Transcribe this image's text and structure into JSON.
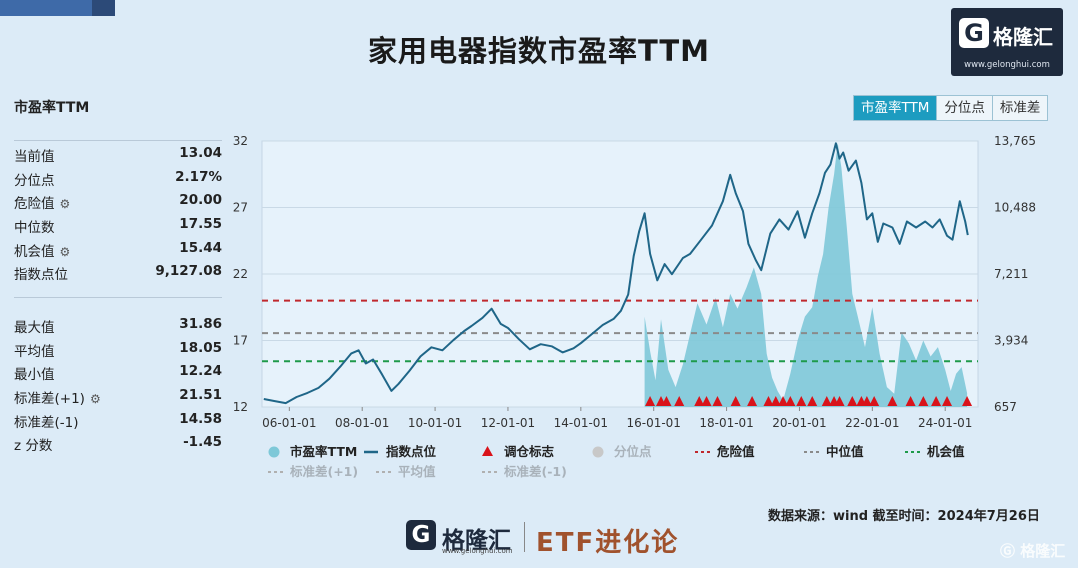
{
  "title": "家用电器指数市盈率TTM",
  "logo": {
    "mark": "G",
    "name": "格隆汇",
    "url": "www.gelonghui.com"
  },
  "panel": {
    "title": "市盈率TTM",
    "stats_top": [
      {
        "label": "当前值",
        "value": "13.04",
        "gear": false
      },
      {
        "label": "分位点",
        "value": "2.17%",
        "gear": false
      },
      {
        "label": "危险值",
        "value": "20.00",
        "gear": true
      },
      {
        "label": "中位数",
        "value": "17.55",
        "gear": false
      },
      {
        "label": "机会值",
        "value": "15.44",
        "gear": true
      },
      {
        "label": "指数点位",
        "value": "9,127.08",
        "gear": false
      }
    ],
    "stats_bottom": [
      {
        "label": "最大值",
        "value": "31.86",
        "gear": false
      },
      {
        "label": "平均值",
        "value": "18.05",
        "gear": false
      },
      {
        "label": "最小值",
        "value": "12.24",
        "gear": false
      },
      {
        "label": "标准差(+1)",
        "value": "21.51",
        "gear": true
      },
      {
        "label": "标准差(-1)",
        "value": "14.58",
        "gear": false
      },
      {
        "label": "z 分数",
        "value": "-1.45",
        "gear": false
      }
    ]
  },
  "tabs": [
    {
      "label": "市盈率TTM",
      "active": true
    },
    {
      "label": "分位点",
      "active": false
    },
    {
      "label": "标准差",
      "active": false
    }
  ],
  "source": "数据来源：wind 截至时间：2024年7月26日",
  "bottom_logo": {
    "mark": "G",
    "name": "格隆汇",
    "url": "www.gelonghui.com",
    "brand": "ETF进化论"
  },
  "watermark": "格隆汇",
  "chart_data": {
    "type": "line",
    "x_ticks": [
      "06-01-01",
      "08-01-01",
      "10-01-01",
      "12-01-01",
      "14-01-01",
      "16-01-01",
      "18-01-01",
      "20-01-01",
      "22-01-01",
      "24-01-01"
    ],
    "x_range": [
      2005.25,
      2024.9
    ],
    "y_left": {
      "ticks": [
        "12",
        "17",
        "22",
        "27",
        "32"
      ],
      "range": [
        12,
        32
      ]
    },
    "y_right": {
      "ticks": [
        "657",
        "3,934",
        "7,211",
        "10,488",
        "13,765"
      ],
      "range": [
        657,
        13765
      ]
    },
    "grid": true,
    "legend_position": "bottom",
    "series": [
      {
        "name": "市盈率TTM",
        "kind": "area",
        "axis": "left",
        "color": "#7ec8d8",
        "points": [
          [
            2015.75,
            18.8
          ],
          [
            2015.9,
            16.2
          ],
          [
            2016.05,
            14.0
          ],
          [
            2016.2,
            18.6
          ],
          [
            2016.4,
            14.8
          ],
          [
            2016.6,
            13.5
          ],
          [
            2016.8,
            15.2
          ],
          [
            2017.0,
            17.5
          ],
          [
            2017.2,
            19.8
          ],
          [
            2017.45,
            18.2
          ],
          [
            2017.7,
            20.2
          ],
          [
            2017.9,
            18.0
          ],
          [
            2018.1,
            20.5
          ],
          [
            2018.3,
            19.4
          ],
          [
            2018.55,
            21.0
          ],
          [
            2018.75,
            22.5
          ],
          [
            2018.95,
            20.5
          ],
          [
            2019.1,
            16.0
          ],
          [
            2019.25,
            14.2
          ],
          [
            2019.4,
            13.2
          ],
          [
            2019.55,
            12.5
          ],
          [
            2019.75,
            14.5
          ],
          [
            2019.95,
            17.0
          ],
          [
            2020.15,
            18.8
          ],
          [
            2020.35,
            19.5
          ],
          [
            2020.5,
            21.8
          ],
          [
            2020.65,
            23.5
          ],
          [
            2020.8,
            27.0
          ],
          [
            2020.95,
            29.5
          ],
          [
            2021.05,
            31.86
          ],
          [
            2021.15,
            30.0
          ],
          [
            2021.3,
            25.5
          ],
          [
            2021.45,
            20.5
          ],
          [
            2021.6,
            18.8
          ],
          [
            2021.8,
            16.5
          ],
          [
            2022.0,
            19.5
          ],
          [
            2022.2,
            16.0
          ],
          [
            2022.4,
            13.5
          ],
          [
            2022.6,
            13.0
          ],
          [
            2022.8,
            17.6
          ],
          [
            2023.0,
            16.8
          ],
          [
            2023.2,
            15.5
          ],
          [
            2023.4,
            17.0
          ],
          [
            2023.6,
            15.8
          ],
          [
            2023.8,
            16.5
          ],
          [
            2024.0,
            14.8
          ],
          [
            2024.15,
            13.2
          ],
          [
            2024.3,
            14.5
          ],
          [
            2024.45,
            15.0
          ],
          [
            2024.6,
            13.04
          ]
        ]
      },
      {
        "name": "指数点位",
        "kind": "line",
        "axis": "right",
        "color": "#1f6688",
        "points": [
          [
            2005.3,
            1050
          ],
          [
            2005.6,
            950
          ],
          [
            2005.9,
            850
          ],
          [
            2006.2,
            1150
          ],
          [
            2006.5,
            1350
          ],
          [
            2006.8,
            1600
          ],
          [
            2007.1,
            2050
          ],
          [
            2007.4,
            2650
          ],
          [
            2007.7,
            3300
          ],
          [
            2007.9,
            3450
          ],
          [
            2008.1,
            2800
          ],
          [
            2008.3,
            3000
          ],
          [
            2008.55,
            2250
          ],
          [
            2008.8,
            1450
          ],
          [
            2009.0,
            1800
          ],
          [
            2009.3,
            2450
          ],
          [
            2009.6,
            3150
          ],
          [
            2009.9,
            3600
          ],
          [
            2010.2,
            3450
          ],
          [
            2010.5,
            3950
          ],
          [
            2010.8,
            4400
          ],
          [
            2011.0,
            4650
          ],
          [
            2011.3,
            5050
          ],
          [
            2011.55,
            5500
          ],
          [
            2011.8,
            4750
          ],
          [
            2012.0,
            4550
          ],
          [
            2012.3,
            4000
          ],
          [
            2012.6,
            3500
          ],
          [
            2012.9,
            3750
          ],
          [
            2013.2,
            3650
          ],
          [
            2013.5,
            3350
          ],
          [
            2013.8,
            3550
          ],
          [
            2014.0,
            3800
          ],
          [
            2014.3,
            4250
          ],
          [
            2014.6,
            4700
          ],
          [
            2014.9,
            5000
          ],
          [
            2015.1,
            5400
          ],
          [
            2015.3,
            6200
          ],
          [
            2015.45,
            8100
          ],
          [
            2015.6,
            9300
          ],
          [
            2015.75,
            10200
          ],
          [
            2015.9,
            8200
          ],
          [
            2016.1,
            6900
          ],
          [
            2016.3,
            7700
          ],
          [
            2016.5,
            7200
          ],
          [
            2016.8,
            8000
          ],
          [
            2017.0,
            8200
          ],
          [
            2017.3,
            8900
          ],
          [
            2017.6,
            9600
          ],
          [
            2017.9,
            10800
          ],
          [
            2018.1,
            12100
          ],
          [
            2018.25,
            11200
          ],
          [
            2018.45,
            10300
          ],
          [
            2018.6,
            8700
          ],
          [
            2018.8,
            7900
          ],
          [
            2018.95,
            7400
          ],
          [
            2019.2,
            9200
          ],
          [
            2019.45,
            9900
          ],
          [
            2019.7,
            9400
          ],
          [
            2019.95,
            10300
          ],
          [
            2020.15,
            9000
          ],
          [
            2020.35,
            10200
          ],
          [
            2020.55,
            11200
          ],
          [
            2020.7,
            12200
          ],
          [
            2020.85,
            12600
          ],
          [
            2021.0,
            13650
          ],
          [
            2021.1,
            12900
          ],
          [
            2021.2,
            13200
          ],
          [
            2021.35,
            12300
          ],
          [
            2021.55,
            12800
          ],
          [
            2021.7,
            11700
          ],
          [
            2021.85,
            9900
          ],
          [
            2022.0,
            10200
          ],
          [
            2022.15,
            8800
          ],
          [
            2022.3,
            9700
          ],
          [
            2022.55,
            9500
          ],
          [
            2022.75,
            8700
          ],
          [
            2022.95,
            9800
          ],
          [
            2023.2,
            9500
          ],
          [
            2023.45,
            9800
          ],
          [
            2023.65,
            9500
          ],
          [
            2023.85,
            9900
          ],
          [
            2024.05,
            9100
          ],
          [
            2024.2,
            8900
          ],
          [
            2024.4,
            10800
          ],
          [
            2024.55,
            9800
          ],
          [
            2024.62,
            9127.08
          ]
        ]
      },
      {
        "name": "调仓标志",
        "kind": "marker",
        "color": "#d9131a",
        "x": [
          2015.9,
          2016.2,
          2016.35,
          2016.7,
          2017.25,
          2017.45,
          2017.75,
          2018.25,
          2018.7,
          2019.15,
          2019.35,
          2019.55,
          2019.75,
          2020.05,
          2020.35,
          2020.75,
          2020.95,
          2021.1,
          2021.45,
          2021.7,
          2021.85,
          2022.05,
          2022.55,
          2023.05,
          2023.4,
          2023.75,
          2024.05,
          2024.6
        ]
      },
      {
        "name": "分位点",
        "kind": "legend-only",
        "color": "#c8c8c8"
      },
      {
        "name": "危险值",
        "kind": "hline",
        "axis": "left",
        "value": 20.0,
        "color": "#c0282d"
      },
      {
        "name": "中位值",
        "kind": "hline",
        "axis": "left",
        "value": 17.55,
        "color": "#8a8a8a"
      },
      {
        "name": "机会值",
        "kind": "hline",
        "axis": "left",
        "value": 15.44,
        "color": "#1e9a4a"
      },
      {
        "name": "标准差(+1)",
        "kind": "legend-only",
        "color": "#b0b0b0"
      },
      {
        "name": "平均值",
        "kind": "legend-only",
        "color": "#b0b0b0"
      },
      {
        "name": "标准差(-1)",
        "kind": "legend-only",
        "color": "#b0b0b0"
      }
    ]
  }
}
